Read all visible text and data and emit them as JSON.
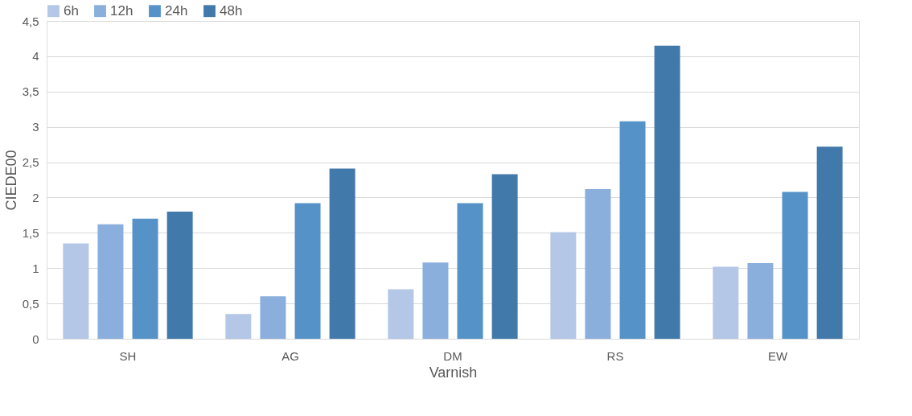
{
  "chart_data": {
    "type": "bar",
    "xlabel": "Varnish",
    "ylabel": "CIEDE00",
    "categories": [
      "SH",
      "AG",
      "DM",
      "RS",
      "EW"
    ],
    "series": [
      {
        "name": "6h",
        "color": "#b4c7e7",
        "values": [
          1.35,
          0.35,
          0.7,
          1.51,
          1.02
        ]
      },
      {
        "name": "12h",
        "color": "#8aafdd",
        "values": [
          1.62,
          0.6,
          1.08,
          2.12,
          1.07
        ]
      },
      {
        "name": "24h",
        "color": "#5592c8",
        "values": [
          1.7,
          1.92,
          1.92,
          3.08,
          2.08
        ]
      },
      {
        "name": "48h",
        "color": "#4279ab",
        "values": [
          1.8,
          2.41,
          2.33,
          4.15,
          2.72
        ]
      }
    ],
    "ylim": [
      0,
      4.5
    ],
    "yticks": [
      0,
      {
        "value": 0.5,
        "label": "0,5"
      },
      1,
      {
        "value": 1.5,
        "label": "1,5"
      },
      2,
      {
        "value": 2.5,
        "label": "2,5"
      },
      3,
      {
        "value": 3.5,
        "label": "3,5"
      },
      4,
      {
        "value": 4.5,
        "label": "4,5"
      }
    ],
    "grid": "y",
    "legend": "top"
  }
}
